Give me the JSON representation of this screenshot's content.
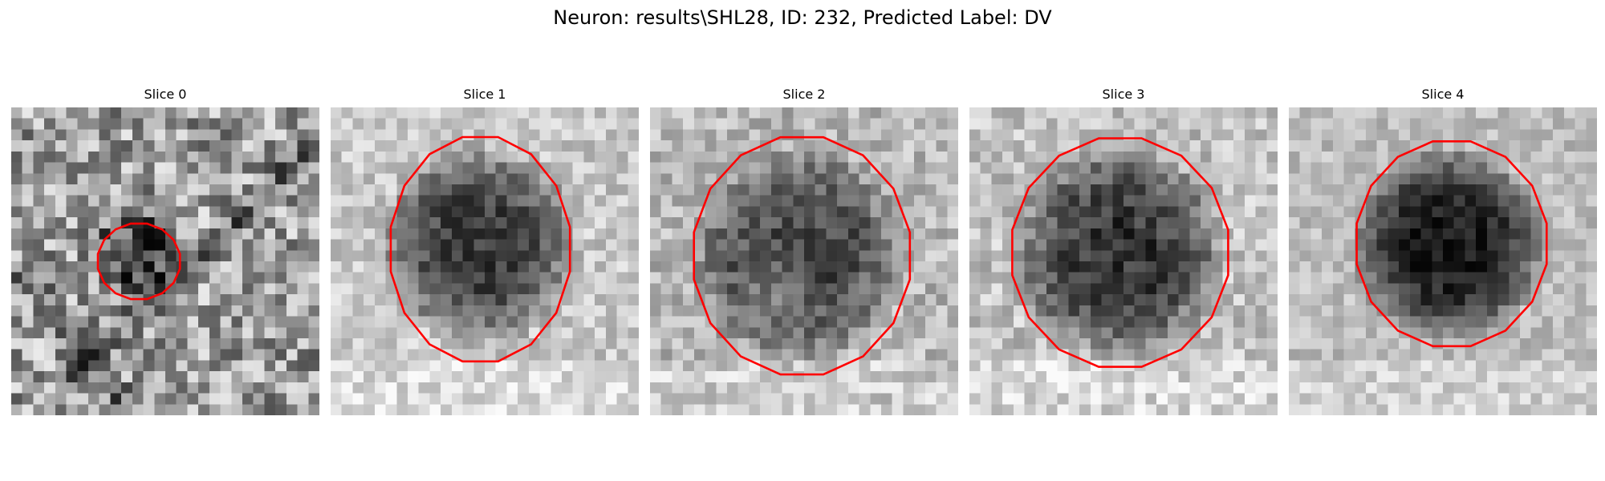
{
  "figure": {
    "title": "Neuron: results\\SHL28, ID: 232, Predicted Label: DV"
  },
  "panels": [
    {
      "title": "Slice 0",
      "contour_color": "#ff0000",
      "colormap": "grayscale"
    },
    {
      "title": "Slice 1",
      "contour_color": "#ff0000",
      "colormap": "grayscale"
    },
    {
      "title": "Slice 2",
      "contour_color": "#ff0000",
      "colormap": "grayscale"
    },
    {
      "title": "Slice 3",
      "contour_color": "#ff0000",
      "colormap": "grayscale"
    },
    {
      "title": "Slice 4",
      "contour_color": "#ff0000",
      "colormap": "grayscale"
    }
  ]
}
